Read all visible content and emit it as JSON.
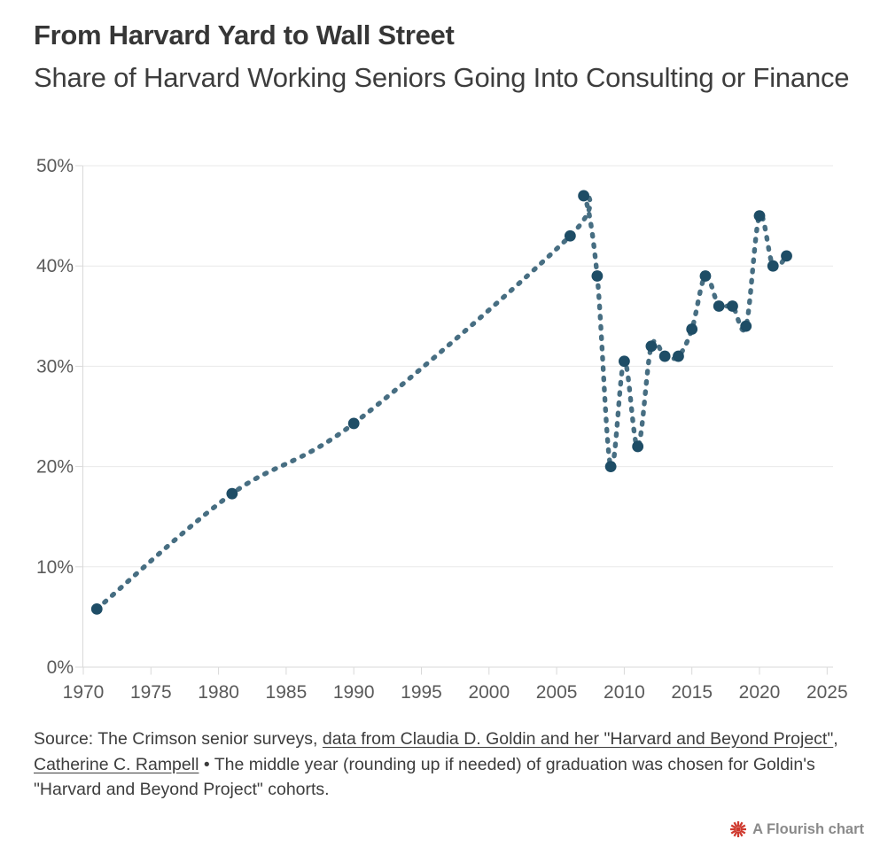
{
  "header": {
    "title": "From Harvard Yard to Wall Street",
    "subtitle": "Share of Harvard Working Seniors Going Into Consulting or Finance"
  },
  "chart_data": {
    "type": "line",
    "title": "From Harvard Yard to Wall Street",
    "subtitle": "Share of Harvard Working Seniors Going Into Consulting or Finance",
    "x": [
      1971,
      1981,
      1990,
      2006,
      2007,
      2008,
      2009,
      2010,
      2011,
      2012,
      2013,
      2014,
      2015,
      2016,
      2017,
      2018,
      2019,
      2020,
      2021,
      2022
    ],
    "values": [
      5.8,
      17.3,
      24.3,
      43,
      47,
      39,
      20,
      30.5,
      22,
      32,
      31,
      31,
      33.7,
      39,
      36,
      36,
      34,
      45,
      40,
      41
    ],
    "xlabel": "",
    "ylabel": "",
    "xlim": [
      1970,
      2025
    ],
    "ylim": [
      0,
      50
    ],
    "xticks": [
      1970,
      1975,
      1980,
      1985,
      1990,
      1995,
      2000,
      2005,
      2010,
      2015,
      2020,
      2025
    ],
    "ytick_values": [
      0,
      10,
      20,
      30,
      40,
      50
    ],
    "ytick_labels": [
      "0%",
      "10%",
      "20%",
      "30%",
      "40%",
      "50%"
    ],
    "grid": "horizontal",
    "legend": "none",
    "line_style": "dashed-smooth",
    "line_color": "#476e82",
    "point_color": "#1e4d66",
    "grid_color": "#e9e9e9",
    "axis_color": "#d9d9d9"
  },
  "footer": {
    "segments": [
      {
        "text": "Source: The Crimson senior surveys, ",
        "link": false
      },
      {
        "text": "data from Claudia D. Goldin and her \"Harvard and Beyond Project\"",
        "link": true
      },
      {
        "text": ", ",
        "link": false
      },
      {
        "text": "Catherine C. Rampell",
        "link": true
      },
      {
        "text": " • The middle year (rounding up if needed) of graduation was chosen for Goldin's \"Harvard and Beyond Project\" cohorts.",
        "link": false
      }
    ]
  },
  "attribution": {
    "label": "A Flourish chart",
    "icon": "flourish-burst-icon",
    "icon_color": "#cf3a2f",
    "label_color": "#8a8a8a"
  }
}
